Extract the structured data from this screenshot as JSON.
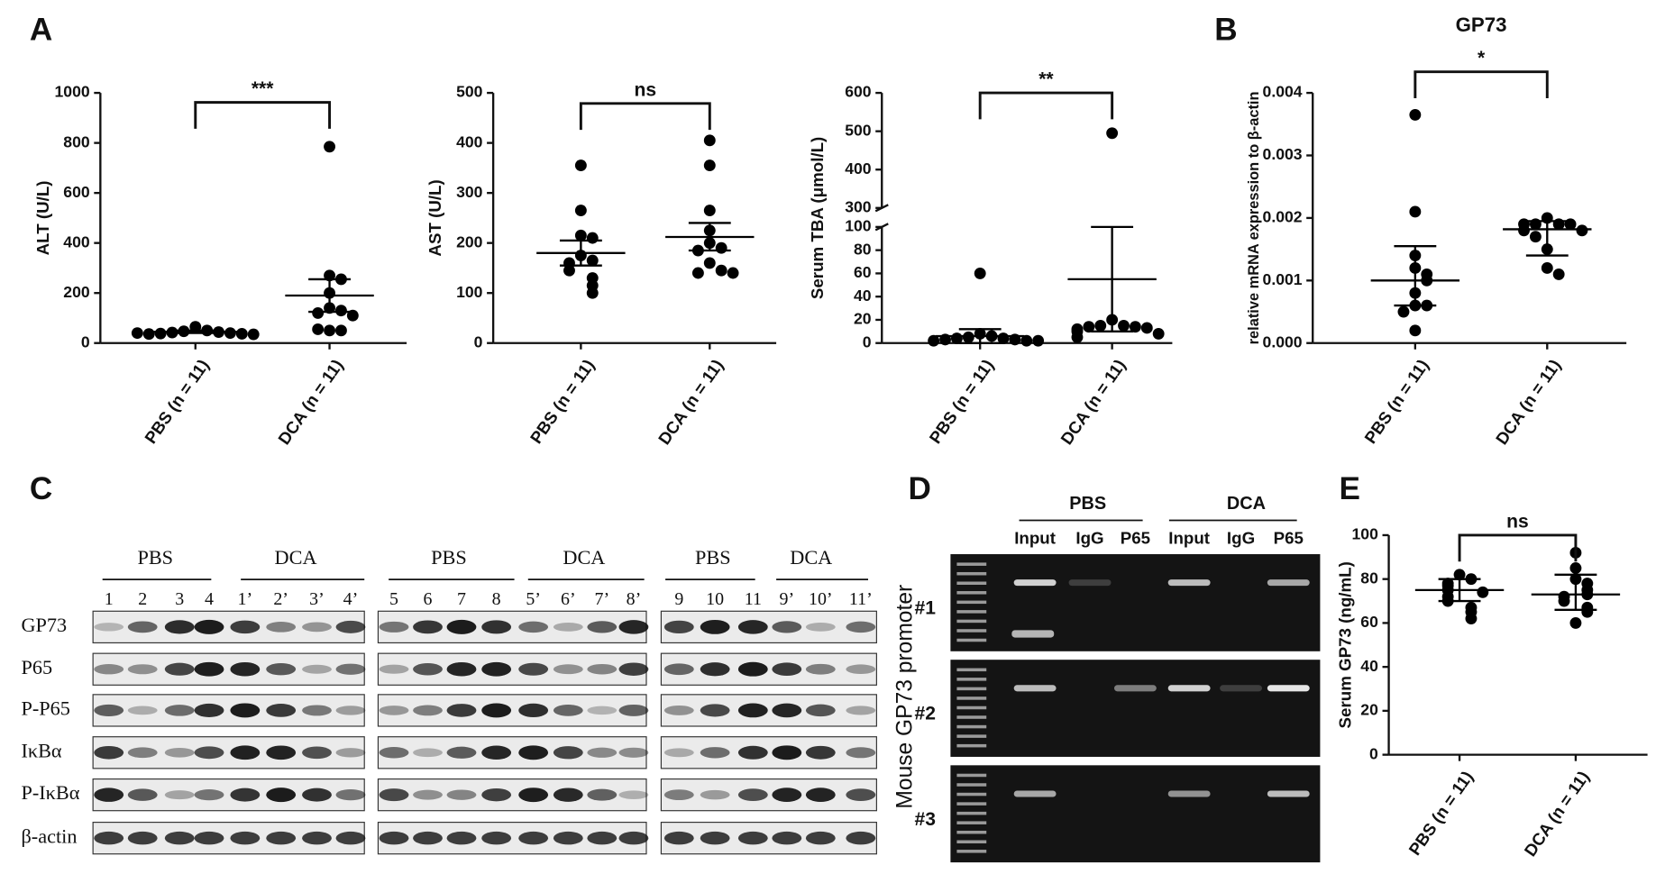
{
  "chart_data": [
    {
      "type": "dotplot",
      "panel": "A",
      "ylabel": "ALT (U/L)",
      "significance": "***",
      "categories": [
        "PBS (n = 11)",
        "DCA (n = 11)"
      ],
      "ylim": [
        0,
        1000
      ],
      "yticks": [
        0,
        200,
        400,
        600,
        800,
        1000
      ],
      "color": "#000000",
      "groups": [
        {
          "values": [
            65,
            50,
            47,
            44,
            42,
            40,
            38,
            37,
            36,
            35,
            40
          ],
          "center": 45,
          "low": 40,
          "high": 50
        },
        {
          "values": [
            785,
            270,
            255,
            200,
            140,
            130,
            120,
            110,
            50,
            50,
            55
          ],
          "center": 190,
          "low": 125,
          "high": 255
        }
      ]
    },
    {
      "type": "dotplot",
      "ylabel": "AST (U/L)",
      "significance": "ns",
      "categories": [
        "PBS (n = 11)",
        "DCA (n = 11)"
      ],
      "ylim": [
        0,
        500
      ],
      "yticks": [
        0,
        100,
        200,
        300,
        400,
        500
      ],
      "color": "#000000",
      "groups": [
        {
          "values": [
            355,
            265,
            215,
            210,
            175,
            165,
            160,
            145,
            130,
            115,
            100
          ],
          "center": 180,
          "low": 155,
          "high": 205
        },
        {
          "values": [
            405,
            355,
            265,
            225,
            200,
            190,
            185,
            160,
            145,
            140,
            140
          ],
          "center": 212,
          "low": 185,
          "high": 240
        }
      ]
    },
    {
      "type": "dotplot",
      "ylabel": "Serum TBA (μmol/L)",
      "significance": "**",
      "categories": [
        "PBS (n = 11)",
        "DCA (n = 11)"
      ],
      "color": "#000000",
      "y_segments": [
        {
          "ylim": [
            0,
            100
          ],
          "yticks": [
            0,
            20,
            40,
            60,
            80,
            100
          ]
        },
        {
          "ylim": [
            300,
            600
          ],
          "yticks": [
            300,
            400,
            500,
            600
          ]
        }
      ],
      "groups": [
        {
          "values": [
            60,
            8,
            6,
            5,
            4,
            4,
            3,
            3,
            2,
            2,
            2
          ],
          "center": 6,
          "low": 0,
          "high": 12
        },
        {
          "values": [
            495,
            20,
            15,
            15,
            14,
            14,
            13,
            12,
            10,
            8,
            5
          ],
          "center": 55,
          "low": 10,
          "high": 100
        }
      ]
    },
    {
      "type": "dotplot",
      "panel": "B",
      "title": "GP73",
      "ylabel": "relative mRNA expression to β-actin",
      "significance": "*",
      "categories": [
        "PBS (n = 11)",
        "DCA (n = 11)"
      ],
      "color": "#000000",
      "ylim": [
        0,
        0.004
      ],
      "yticks": [
        {
          "value": 0,
          "label": "0.000"
        },
        {
          "value": 0.001,
          "label": "0.001"
        },
        {
          "value": 0.002,
          "label": "0.002"
        },
        {
          "value": 0.003,
          "label": "0.003"
        },
        {
          "value": 0.004,
          "label": "0.004"
        }
      ],
      "groups": [
        {
          "values": [
            0.00365,
            0.0021,
            0.0014,
            0.0012,
            0.0011,
            0.001,
            0.0008,
            0.0006,
            0.0006,
            0.0005,
            0.0002
          ],
          "center": 0.001,
          "low": 0.0006,
          "high": 0.00155
        },
        {
          "values": [
            0.002,
            0.0019,
            0.0019,
            0.0019,
            0.0019,
            0.0018,
            0.0018,
            0.0017,
            0.0015,
            0.0012,
            0.0011
          ],
          "center": 0.00182,
          "low": 0.0014,
          "high": 0.00195
        }
      ]
    },
    {
      "type": "dotplot",
      "panel": "E",
      "ylabel": "Serum GP73 (ng/mL)",
      "significance": "ns",
      "categories": [
        "PBS (n = 11)",
        "DCA (n = 11)"
      ],
      "color": "#000000",
      "ylim": [
        0,
        100
      ],
      "yticks": [
        0,
        20,
        40,
        60,
        80,
        100
      ],
      "groups": [
        {
          "values": [
            82,
            80,
            78,
            77,
            75,
            74,
            72,
            70,
            67,
            65,
            62
          ],
          "center": 75,
          "low": 70,
          "high": 80
        },
        {
          "values": [
            92,
            85,
            80,
            78,
            75,
            73,
            72,
            70,
            67,
            65,
            60
          ],
          "center": 73,
          "low": 66,
          "high": 82
        }
      ]
    }
  ],
  "blot": {
    "panel": "C",
    "rows": [
      "GP73",
      "P65",
      "P-P65",
      "IκBα",
      "P-IκBα",
      "β-actin"
    ],
    "groups": [
      {
        "conditions": [
          "PBS",
          "DCA"
        ],
        "lanes": [
          "1",
          "2",
          "3",
          "4",
          "1’",
          "2’",
          "3’",
          "4’"
        ]
      },
      {
        "conditions": [
          "PBS",
          "DCA"
        ],
        "lanes": [
          "5",
          "6",
          "7",
          "8",
          "5’",
          "6’",
          "7’",
          "8’"
        ]
      },
      {
        "conditions": [
          "PBS",
          "DCA"
        ],
        "lanes": [
          "9",
          "10",
          "11",
          "9’",
          "10’",
          "11’"
        ]
      }
    ]
  },
  "gel": {
    "panel": "D",
    "ylabel": "Mouse GP73 promoter",
    "conditions": [
      "PBS",
      "DCA"
    ],
    "lanes": [
      "Input",
      "IgG",
      "P65",
      "Input",
      "IgG",
      "P65"
    ],
    "rows": [
      "#1",
      "#2",
      "#3"
    ]
  }
}
